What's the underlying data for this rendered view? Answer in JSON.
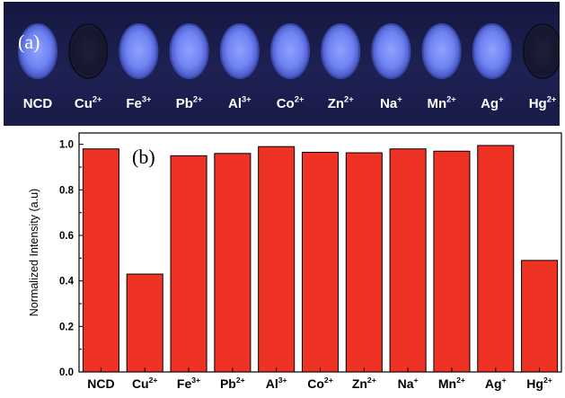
{
  "panel_a": {
    "label": "(a)",
    "samples": [
      {
        "name": "NCD",
        "sup": "",
        "glow": "bright"
      },
      {
        "name": "Cu",
        "sup": "2+",
        "glow": "dark"
      },
      {
        "name": "Fe",
        "sup": "3+",
        "glow": "bright"
      },
      {
        "name": "Pb",
        "sup": "2+",
        "glow": "bright"
      },
      {
        "name": "Al",
        "sup": "3+",
        "glow": "bright"
      },
      {
        "name": "Co",
        "sup": "2+",
        "glow": "bright"
      },
      {
        "name": "Zn",
        "sup": "2+",
        "glow": "bright"
      },
      {
        "name": "Na",
        "sup": "+",
        "glow": "bright"
      },
      {
        "name": "Mn",
        "sup": "2+",
        "glow": "bright"
      },
      {
        "name": "Ag",
        "sup": "+",
        "glow": "bright"
      },
      {
        "name": "Hg",
        "sup": "2+",
        "glow": "dark"
      }
    ]
  },
  "chart_data": {
    "type": "bar",
    "panel_label": "(b)",
    "categories": [
      {
        "name": "NCD",
        "sup": ""
      },
      {
        "name": "Cu",
        "sup": "2+"
      },
      {
        "name": "Fe",
        "sup": "3+"
      },
      {
        "name": "Pb",
        "sup": "2+"
      },
      {
        "name": "Al",
        "sup": "3+"
      },
      {
        "name": "Co",
        "sup": "2+"
      },
      {
        "name": "Zn",
        "sup": "2+"
      },
      {
        "name": "Na",
        "sup": "+"
      },
      {
        "name": "Mn",
        "sup": "2+"
      },
      {
        "name": "Ag",
        "sup": "+"
      },
      {
        "name": "Hg",
        "sup": "2+"
      }
    ],
    "values": [
      0.98,
      0.43,
      0.95,
      0.96,
      0.99,
      0.965,
      0.963,
      0.98,
      0.97,
      0.995,
      0.49
    ],
    "ylabel": "Normalized Intensity (a.u)",
    "xlabel": "",
    "ylim": [
      0,
      1.05
    ],
    "yticks": [
      "0.0",
      "0.2",
      "0.4",
      "0.6",
      "0.8",
      "1.0"
    ],
    "grid": false,
    "bar_color": "#ee3224"
  }
}
